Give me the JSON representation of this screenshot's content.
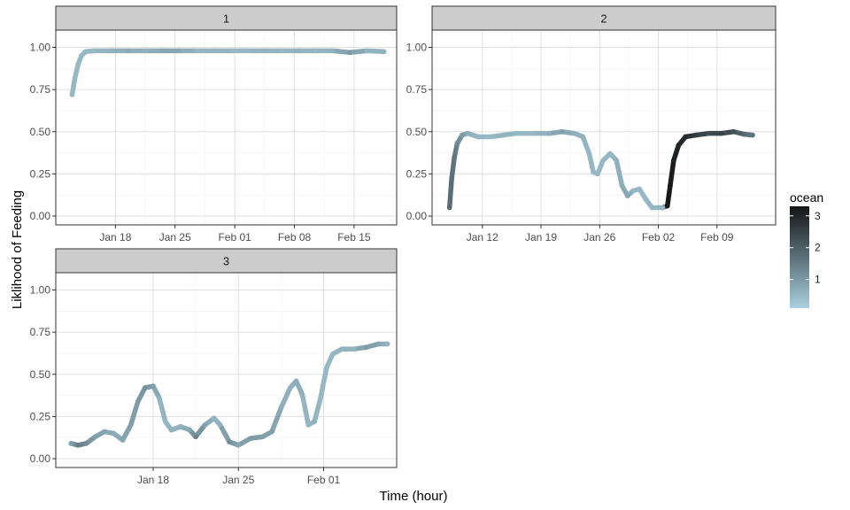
{
  "chart_data": {
    "type": "line",
    "x_unit": "date",
    "xlabel": "Time (hour)",
    "ylabel": "Liklihood of Feeding",
    "grid": true,
    "legend_position": "right",
    "color_legend": {
      "title": "ocean",
      "type": "continuous",
      "range": [
        0.1,
        3.3
      ],
      "ticks": [
        1,
        2,
        3
      ],
      "tick_labels": [
        "1",
        "2",
        "3"
      ],
      "low_color": "#a9d0de",
      "high_color": "#141414"
    },
    "panels": [
      {
        "strip": "1",
        "ylim": [
          0,
          1.05
        ],
        "y_ticks": [
          0,
          0.25,
          0.5,
          0.75,
          1.0
        ],
        "y_tick_labels": [
          "0.00",
          "0.25",
          "0.50",
          "0.75",
          "1.00"
        ],
        "xlim": [
          "2019-01-11",
          "2019-02-20"
        ],
        "x_ticks": [
          "2019-01-18",
          "2019-01-25",
          "2019-02-01",
          "2019-02-08",
          "2019-02-15"
        ],
        "x_tick_labels": [
          "Jan 18",
          "Jan 25",
          "Feb 01",
          "Feb 08",
          "Feb 15"
        ],
        "series": [
          {
            "x": "2019-01-12T22:00",
            "y": 0.72,
            "ocean": 0.5
          },
          {
            "x": "2019-01-13T06:00",
            "y": 0.82,
            "ocean": 0.5
          },
          {
            "x": "2019-01-13T15:00",
            "y": 0.9,
            "ocean": 0.5
          },
          {
            "x": "2019-01-14T00:00",
            "y": 0.95,
            "ocean": 0.5
          },
          {
            "x": "2019-01-14T12:00",
            "y": 0.975,
            "ocean": 0.5
          },
          {
            "x": "2019-01-15T12:00",
            "y": 0.98,
            "ocean": 0.5
          },
          {
            "x": "2019-01-17T12:00",
            "y": 0.98,
            "ocean": 0.6
          },
          {
            "x": "2019-01-19T12:00",
            "y": 0.98,
            "ocean": 0.7
          },
          {
            "x": "2019-01-21T12:00",
            "y": 0.98,
            "ocean": 0.6
          },
          {
            "x": "2019-01-23T12:00",
            "y": 0.98,
            "ocean": 0.8
          },
          {
            "x": "2019-01-25T12:00",
            "y": 0.98,
            "ocean": 0.8
          },
          {
            "x": "2019-01-27T12:00",
            "y": 0.98,
            "ocean": 0.5
          },
          {
            "x": "2019-01-29T12:00",
            "y": 0.98,
            "ocean": 0.6
          },
          {
            "x": "2019-01-31T12:00",
            "y": 0.98,
            "ocean": 0.5
          },
          {
            "x": "2019-02-02T12:00",
            "y": 0.98,
            "ocean": 0.5
          },
          {
            "x": "2019-02-04T12:00",
            "y": 0.98,
            "ocean": 0.6
          },
          {
            "x": "2019-02-06T12:00",
            "y": 0.98,
            "ocean": 0.5
          },
          {
            "x": "2019-02-08T12:00",
            "y": 0.98,
            "ocean": 0.6
          },
          {
            "x": "2019-02-10T12:00",
            "y": 0.98,
            "ocean": 0.5
          },
          {
            "x": "2019-02-12T12:00",
            "y": 0.98,
            "ocean": 0.6
          },
          {
            "x": "2019-02-14T12:00",
            "y": 0.97,
            "ocean": 1.0
          },
          {
            "x": "2019-02-16T12:00",
            "y": 0.98,
            "ocean": 0.6
          },
          {
            "x": "2019-02-18T12:00",
            "y": 0.975,
            "ocean": 0.6
          }
        ]
      },
      {
        "strip": "2",
        "ylim": [
          0,
          1.05
        ],
        "y_ticks": [
          0,
          0.25,
          0.5,
          0.75,
          1.0
        ],
        "y_tick_labels": [
          "0.00",
          "0.25",
          "0.50",
          "0.75",
          "1.00"
        ],
        "xlim": [
          "2019-01-06",
          "2019-02-16"
        ],
        "x_ticks": [
          "2019-01-12",
          "2019-01-19",
          "2019-01-26",
          "2019-02-02",
          "2019-02-09"
        ],
        "x_tick_labels": [
          "Jan 12",
          "Jan 19",
          "Jan 26",
          "Feb 02",
          "Feb 09"
        ],
        "series": [
          {
            "x": "2019-01-08T02:00",
            "y": 0.05,
            "ocean": 1.8
          },
          {
            "x": "2019-01-08T08:00",
            "y": 0.22,
            "ocean": 1.7
          },
          {
            "x": "2019-01-08T16:00",
            "y": 0.35,
            "ocean": 1.6
          },
          {
            "x": "2019-01-09T00:00",
            "y": 0.43,
            "ocean": 1.3
          },
          {
            "x": "2019-01-09T14:00",
            "y": 0.48,
            "ocean": 1.0
          },
          {
            "x": "2019-01-10T06:00",
            "y": 0.49,
            "ocean": 0.7
          },
          {
            "x": "2019-01-11T12:00",
            "y": 0.47,
            "ocean": 0.5
          },
          {
            "x": "2019-01-13T00:00",
            "y": 0.47,
            "ocean": 0.5
          },
          {
            "x": "2019-01-14T12:00",
            "y": 0.48,
            "ocean": 0.6
          },
          {
            "x": "2019-01-16T00:00",
            "y": 0.49,
            "ocean": 0.5
          },
          {
            "x": "2019-01-18T00:00",
            "y": 0.49,
            "ocean": 0.5
          },
          {
            "x": "2019-01-20T00:00",
            "y": 0.49,
            "ocean": 0.7
          },
          {
            "x": "2019-01-21T12:00",
            "y": 0.5,
            "ocean": 0.9
          },
          {
            "x": "2019-01-23T00:00",
            "y": 0.49,
            "ocean": 0.6
          },
          {
            "x": "2019-01-24T00:00",
            "y": 0.47,
            "ocean": 0.6
          },
          {
            "x": "2019-01-24T18:00",
            "y": 0.37,
            "ocean": 0.5
          },
          {
            "x": "2019-01-25T06:00",
            "y": 0.26,
            "ocean": 0.5
          },
          {
            "x": "2019-01-25T18:00",
            "y": 0.25,
            "ocean": 0.5
          },
          {
            "x": "2019-01-26T10:00",
            "y": 0.33,
            "ocean": 0.5
          },
          {
            "x": "2019-01-27T06:00",
            "y": 0.37,
            "ocean": 0.5
          },
          {
            "x": "2019-01-28T00:00",
            "y": 0.33,
            "ocean": 0.6
          },
          {
            "x": "2019-01-28T16:00",
            "y": 0.18,
            "ocean": 0.7
          },
          {
            "x": "2019-01-29T08:00",
            "y": 0.12,
            "ocean": 0.8
          },
          {
            "x": "2019-01-30T00:00",
            "y": 0.15,
            "ocean": 0.5
          },
          {
            "x": "2019-01-30T18:00",
            "y": 0.16,
            "ocean": 0.5
          },
          {
            "x": "2019-01-31T12:00",
            "y": 0.1,
            "ocean": 0.5
          },
          {
            "x": "2019-02-01T06:00",
            "y": 0.05,
            "ocean": 0.5
          },
          {
            "x": "2019-02-02T12:00",
            "y": 0.05,
            "ocean": 0.5
          },
          {
            "x": "2019-02-03T02:00",
            "y": 0.06,
            "ocean": 3.2
          },
          {
            "x": "2019-02-03T10:00",
            "y": 0.18,
            "ocean": 3.2
          },
          {
            "x": "2019-02-03T20:00",
            "y": 0.33,
            "ocean": 3.1
          },
          {
            "x": "2019-02-04T10:00",
            "y": 0.42,
            "ocean": 3.0
          },
          {
            "x": "2019-02-05T06:00",
            "y": 0.47,
            "ocean": 2.9
          },
          {
            "x": "2019-02-06T12:00",
            "y": 0.48,
            "ocean": 2.6
          },
          {
            "x": "2019-02-08T00:00",
            "y": 0.49,
            "ocean": 2.3
          },
          {
            "x": "2019-02-09T12:00",
            "y": 0.49,
            "ocean": 2.5
          },
          {
            "x": "2019-02-11T00:00",
            "y": 0.5,
            "ocean": 2.2
          },
          {
            "x": "2019-02-12T06:00",
            "y": 0.485,
            "ocean": 1.8
          },
          {
            "x": "2019-02-13T06:00",
            "y": 0.48,
            "ocean": 1.6
          }
        ]
      },
      {
        "strip": "3",
        "ylim": [
          0,
          1.05
        ],
        "y_ticks": [
          0,
          0.25,
          0.5,
          0.75,
          1.0
        ],
        "y_tick_labels": [
          "0.00",
          "0.25",
          "0.50",
          "0.75",
          "1.00"
        ],
        "xlim": [
          "2019-01-10",
          "2019-02-07"
        ],
        "x_ticks": [
          "2019-01-18",
          "2019-01-25",
          "2019-02-01"
        ],
        "x_tick_labels": [
          "Jan 18",
          "Jan 25",
          "Feb 01"
        ],
        "series": [
          {
            "x": "2019-01-11T06:00",
            "y": 0.09,
            "ocean": 0.9
          },
          {
            "x": "2019-01-11T20:00",
            "y": 0.08,
            "ocean": 1.5
          },
          {
            "x": "2019-01-12T12:00",
            "y": 0.09,
            "ocean": 1.2
          },
          {
            "x": "2019-01-13T06:00",
            "y": 0.13,
            "ocean": 0.9
          },
          {
            "x": "2019-01-14T00:00",
            "y": 0.16,
            "ocean": 0.8
          },
          {
            "x": "2019-01-14T18:00",
            "y": 0.15,
            "ocean": 0.7
          },
          {
            "x": "2019-01-15T12:00",
            "y": 0.11,
            "ocean": 0.8
          },
          {
            "x": "2019-01-16T04:00",
            "y": 0.2,
            "ocean": 0.9
          },
          {
            "x": "2019-01-16T18:00",
            "y": 0.34,
            "ocean": 1.0
          },
          {
            "x": "2019-01-17T08:00",
            "y": 0.42,
            "ocean": 1.1
          },
          {
            "x": "2019-01-18T00:00",
            "y": 0.43,
            "ocean": 0.9
          },
          {
            "x": "2019-01-18T12:00",
            "y": 0.36,
            "ocean": 0.6
          },
          {
            "x": "2019-01-19T00:00",
            "y": 0.22,
            "ocean": 0.5
          },
          {
            "x": "2019-01-19T12:00",
            "y": 0.17,
            "ocean": 0.6
          },
          {
            "x": "2019-01-20T06:00",
            "y": 0.19,
            "ocean": 0.6
          },
          {
            "x": "2019-01-21T00:00",
            "y": 0.17,
            "ocean": 0.8
          },
          {
            "x": "2019-01-21T12:00",
            "y": 0.13,
            "ocean": 1.4
          },
          {
            "x": "2019-01-22T06:00",
            "y": 0.2,
            "ocean": 0.8
          },
          {
            "x": "2019-01-23T00:00",
            "y": 0.24,
            "ocean": 0.6
          },
          {
            "x": "2019-01-23T12:00",
            "y": 0.2,
            "ocean": 0.6
          },
          {
            "x": "2019-01-24T06:00",
            "y": 0.1,
            "ocean": 1.2
          },
          {
            "x": "2019-01-25T00:00",
            "y": 0.08,
            "ocean": 0.8
          },
          {
            "x": "2019-01-26T00:00",
            "y": 0.12,
            "ocean": 1.0
          },
          {
            "x": "2019-01-27T00:00",
            "y": 0.13,
            "ocean": 0.9
          },
          {
            "x": "2019-01-27T18:00",
            "y": 0.16,
            "ocean": 0.9
          },
          {
            "x": "2019-01-28T12:00",
            "y": 0.3,
            "ocean": 0.7
          },
          {
            "x": "2019-01-29T06:00",
            "y": 0.42,
            "ocean": 0.6
          },
          {
            "x": "2019-01-29T18:00",
            "y": 0.46,
            "ocean": 0.7
          },
          {
            "x": "2019-01-30T06:00",
            "y": 0.38,
            "ocean": 0.6
          },
          {
            "x": "2019-01-30T18:00",
            "y": 0.2,
            "ocean": 0.5
          },
          {
            "x": "2019-01-31T06:00",
            "y": 0.22,
            "ocean": 0.6
          },
          {
            "x": "2019-01-31T18:00",
            "y": 0.36,
            "ocean": 0.5
          },
          {
            "x": "2019-02-01T06:00",
            "y": 0.54,
            "ocean": 0.5
          },
          {
            "x": "2019-02-01T18:00",
            "y": 0.62,
            "ocean": 0.5
          },
          {
            "x": "2019-02-02T12:00",
            "y": 0.65,
            "ocean": 0.6
          },
          {
            "x": "2019-02-03T12:00",
            "y": 0.65,
            "ocean": 0.6
          },
          {
            "x": "2019-02-04T12:00",
            "y": 0.66,
            "ocean": 1.0
          },
          {
            "x": "2019-02-05T12:00",
            "y": 0.68,
            "ocean": 0.8
          },
          {
            "x": "2019-02-06T06:00",
            "y": 0.68,
            "ocean": 0.6
          }
        ]
      }
    ]
  }
}
